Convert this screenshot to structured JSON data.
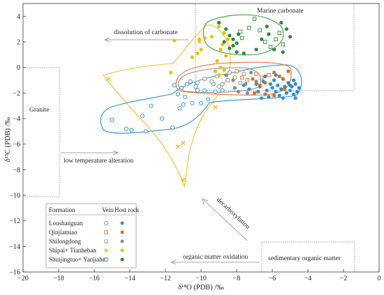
{
  "chart_data": {
    "type": "scatter",
    "xlabel": "δ¹⁸O (PDB) /‰",
    "ylabel": "δ¹³C (PDB) /‰",
    "xlim": [
      -20,
      0
    ],
    "ylim": [
      -16,
      5
    ],
    "x_ticks": [
      "−20",
      "−18",
      "−16",
      "−14",
      "−12",
      "−10",
      "−8",
      "−6",
      "−4",
      "−2",
      "0"
    ],
    "y_ticks": [
      "4",
      "2",
      "0",
      "−2",
      "−4",
      "−6",
      "−8",
      "−10",
      "−12",
      "−14",
      "−16"
    ],
    "legend": {
      "headers": {
        "formation": "Formation",
        "vein": "Vein",
        "host": "Host rock"
      },
      "entries": [
        {
          "name": "Loushanguan",
          "color": "#2a8fd6",
          "vein_marker": "open-circle",
          "host_marker": "filled-circle"
        },
        {
          "name": "Qinjiamiao",
          "color": "#e06a20",
          "vein_marker": "open-square",
          "host_marker": "filled-square"
        },
        {
          "name": "Shilongdong",
          "color": "#8a8a8a",
          "vein_marker": "open-circle",
          "host_marker": "filled-circle"
        },
        {
          "name": "Shipai+ Tianheban",
          "color": "#e6c000",
          "vein_marker": "x",
          "host_marker": "filled-circle"
        },
        {
          "name": "Shuijingtuo+ Yanjiahe",
          "color": "#2b8a2b",
          "vein_marker": "open-square",
          "host_marker": "filled-circle"
        }
      ]
    },
    "annotations": [
      "Marine  carbonate",
      "dissolution of carbonate",
      "Granite",
      "low temperature alteration",
      "decarboxylation",
      "organic matter oxidation",
      "sedimentary organic matter"
    ],
    "series": [
      {
        "name": "Loushanguan",
        "kind": "vein",
        "points": [
          [
            -15.0,
            -4.1
          ],
          [
            -14.2,
            -4.8
          ],
          [
            -13.9,
            -4.9
          ],
          [
            -13.1,
            -5.0
          ],
          [
            -13.3,
            -3.8
          ],
          [
            -12.8,
            -3.0
          ],
          [
            -12.2,
            -4.0
          ],
          [
            -11.6,
            -4.7
          ],
          [
            -11.2,
            -3.2
          ],
          [
            -11.0,
            -2.9
          ],
          [
            -10.9,
            -2.3
          ],
          [
            -10.5,
            -2.8
          ],
          [
            -10.2,
            -1.8
          ],
          [
            -10.0,
            -2.8
          ],
          [
            -9.8,
            -1.8
          ],
          [
            -9.6,
            -2.5
          ],
          [
            -9.2,
            -1.9
          ],
          [
            -8.8,
            -1.8
          ],
          [
            -9.3,
            -1.3
          ],
          [
            -10.3,
            -1.5
          ],
          [
            -10.6,
            -1.1
          ],
          [
            -10.8,
            -1.3
          ],
          [
            -11.1,
            -1.6
          ],
          [
            -11.3,
            -2.1
          ],
          [
            -11.5,
            -1.4
          ]
        ]
      },
      {
        "name": "Loushanguan",
        "kind": "host",
        "points": [
          [
            -6.9,
            -1.3
          ],
          [
            -6.7,
            -1.5
          ],
          [
            -6.5,
            -1.1
          ],
          [
            -6.3,
            -1.8
          ],
          [
            -6.1,
            -1.3
          ],
          [
            -6.0,
            -1.6
          ],
          [
            -5.9,
            -1.0
          ],
          [
            -5.8,
            -1.9
          ],
          [
            -5.7,
            -1.4
          ],
          [
            -5.6,
            -2.2
          ],
          [
            -5.5,
            -1.7
          ],
          [
            -5.4,
            -0.9
          ],
          [
            -5.3,
            -1.5
          ],
          [
            -5.2,
            -2.0
          ],
          [
            -5.1,
            -1.2
          ],
          [
            -5.0,
            -1.8
          ],
          [
            -4.9,
            -1.5
          ],
          [
            -4.8,
            -2.1
          ],
          [
            -4.7,
            -1.3
          ],
          [
            -4.6,
            -1.9
          ],
          [
            -4.5,
            -1.6
          ],
          [
            -6.2,
            -2.3
          ],
          [
            -6.8,
            -1.9
          ],
          [
            -5.4,
            -2.4
          ],
          [
            -4.8,
            -1.0
          ],
          [
            -7.3,
            -1.7
          ],
          [
            -7.6,
            -1.4
          ],
          [
            -6.4,
            -0.7
          ],
          [
            -5.8,
            -0.6
          ],
          [
            -4.7,
            -2.4
          ],
          [
            -5.0,
            -1.4
          ],
          [
            -6.6,
            -2.4
          ]
        ]
      },
      {
        "name": "Qinjiamiao",
        "kind": "vein",
        "points": [
          [
            -8.0,
            -0.3
          ],
          [
            -7.7,
            -0.8
          ],
          [
            -7.4,
            -1.0
          ],
          [
            -6.9,
            -0.5
          ],
          [
            -6.6,
            -0.8
          ],
          [
            -6.2,
            -0.6
          ]
        ]
      },
      {
        "name": "Qinjiamiao",
        "kind": "host",
        "points": [
          [
            -7.1,
            -0.9
          ],
          [
            -6.7,
            -1.4
          ],
          [
            -6.4,
            -1.2
          ],
          [
            -5.9,
            -0.4
          ],
          [
            -5.6,
            -0.7
          ],
          [
            -5.3,
            -1.7
          ],
          [
            -5.1,
            -0.3
          ],
          [
            -5.9,
            -2.2
          ],
          [
            -6.4,
            -2.1
          ],
          [
            -7.0,
            -2.0
          ],
          [
            -5.4,
            -0.9
          ]
        ]
      },
      {
        "name": "Shilongdong",
        "kind": "vein",
        "points": [
          [
            -10.2,
            -1.2
          ],
          [
            -9.8,
            -0.9
          ],
          [
            -9.4,
            -1.1
          ],
          [
            -9.1,
            -0.7
          ],
          [
            -8.8,
            -1.3
          ],
          [
            -8.5,
            -1.0
          ],
          [
            -8.1,
            -0.8
          ],
          [
            -7.8,
            -1.2
          ],
          [
            -7.6,
            -0.5
          ],
          [
            -8.4,
            -0.4
          ],
          [
            -9.0,
            -1.5
          ]
        ]
      },
      {
        "name": "Shilongdong",
        "kind": "host",
        "points": [
          [
            -8.6,
            -0.6
          ],
          [
            -8.2,
            -1.0
          ],
          [
            -7.9,
            -1.9
          ],
          [
            -7.5,
            -1.3
          ],
          [
            -7.2,
            -0.4
          ],
          [
            -6.9,
            -1.1
          ],
          [
            -7.4,
            -2.0
          ],
          [
            -8.1,
            -1.6
          ]
        ]
      },
      {
        "name": "Shipai+ Tianheban",
        "kind": "vein",
        "points": [
          [
            -15.2,
            -0.9
          ],
          [
            -10.1,
            2.0
          ],
          [
            -11.3,
            -6.2
          ],
          [
            -11.0,
            -5.9
          ],
          [
            -11.0,
            -8.8
          ],
          [
            -9.2,
            -3.1
          ]
        ]
      },
      {
        "name": "Shipai+ Tianheban",
        "kind": "host",
        "points": [
          [
            -9.0,
            3.2
          ],
          [
            -8.7,
            2.7
          ],
          [
            -8.5,
            2.2
          ],
          [
            -9.4,
            2.4
          ],
          [
            -8.8,
            1.8
          ],
          [
            -8.9,
            1.4
          ],
          [
            -8.6,
            0.9
          ],
          [
            -9.1,
            0.5
          ],
          [
            -8.9,
            0.0
          ],
          [
            -9.2,
            -0.3
          ],
          [
            -9.0,
            -0.6
          ],
          [
            -9.8,
            2.3
          ],
          [
            -10.0,
            1.4
          ],
          [
            -10.5,
            0.8
          ],
          [
            -10.1,
            2.2
          ],
          [
            -11.5,
            2.1
          ],
          [
            -11.7,
            -0.4
          ],
          [
            -10.2,
            1.1
          ],
          [
            -8.7,
            -0.2
          ]
        ]
      },
      {
        "name": "Shuijingtuo+ Yanjiahe",
        "kind": "vein",
        "points": [
          [
            -7.7,
            2.3
          ],
          [
            -7.3,
            3.1
          ],
          [
            -7.0,
            3.8
          ],
          [
            -6.7,
            2.9
          ],
          [
            -6.4,
            2.0
          ],
          [
            -6.1,
            1.6
          ],
          [
            -5.8,
            2.2
          ],
          [
            -5.6,
            2.7
          ],
          [
            -5.4,
            1.8
          ],
          [
            -7.8,
            2.8
          ]
        ]
      },
      {
        "name": "Shuijingtuo+ Yanjiahe",
        "kind": "host",
        "points": [
          [
            -9.0,
            3.5
          ],
          [
            -8.6,
            3.0
          ],
          [
            -8.4,
            2.5
          ],
          [
            -8.2,
            2.2
          ],
          [
            -8.0,
            1.9
          ],
          [
            -8.4,
            1.5
          ],
          [
            -8.0,
            1.2
          ],
          [
            -7.6,
            1.1
          ],
          [
            -7.9,
            2.6
          ],
          [
            -8.7,
            2.0
          ],
          [
            -6.9,
            1.4
          ],
          [
            -6.6,
            2.2
          ],
          [
            -6.2,
            2.6
          ],
          [
            -5.9,
            1.4
          ],
          [
            -5.5,
            3.5
          ],
          [
            -5.2,
            3.0
          ],
          [
            -5.0,
            2.4
          ],
          [
            -5.4,
            1.2
          ],
          [
            -6.3,
            3.2
          ],
          [
            -8.2,
            1.7
          ]
        ]
      }
    ]
  }
}
